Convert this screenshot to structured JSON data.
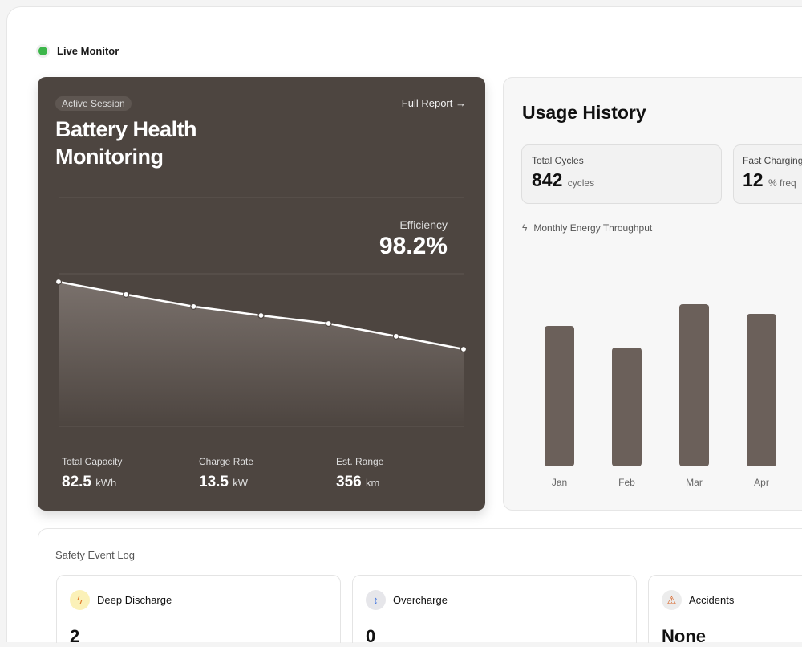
{
  "header": {
    "status": "Live Monitor",
    "status_color": "#3cb64a"
  },
  "battery": {
    "badge": "Active Session",
    "link": "Full Report →",
    "title_line1": "Battery Health",
    "title_line2": "Monitoring",
    "efficiency_label": "Efficiency",
    "efficiency_value": "98.2%",
    "stats": [
      {
        "label": "Total Capacity",
        "value": "82.5",
        "unit": "kWh"
      },
      {
        "label": "Charge Rate",
        "value": "13.5",
        "unit": "kW"
      },
      {
        "label": "Est. Range",
        "value": "356",
        "unit": "km"
      }
    ]
  },
  "usage": {
    "title": "Usage History",
    "cards": [
      {
        "label": "Total Cycles",
        "value": "842",
        "unit": "cycles"
      },
      {
        "label": "Fast Charging",
        "value": "12",
        "unit": "% freq"
      }
    ],
    "chart_label": "Monthly Energy Throughput"
  },
  "chart_data": [
    {
      "type": "line",
      "values": [
        100,
        94.6,
        89.5,
        85.7,
        82.3,
        76.9,
        71.4
      ],
      "color": "#ffffff",
      "grid": true
    },
    {
      "type": "bar",
      "categories": [
        "Jan",
        "Feb",
        "Mar",
        "Apr"
      ],
      "values": [
        175,
        148,
        202,
        190
      ],
      "color": "#6b605a"
    }
  ],
  "safety": {
    "title": "Safety Event Log",
    "events": [
      {
        "label": "Deep Discharge",
        "value": "2",
        "icon": "lightning-icon",
        "color": "#e07a2e",
        "bg": "#fbf1b8"
      },
      {
        "label": "Overcharge",
        "value": "0",
        "icon": "arrows-vertical-icon",
        "color": "#4a7be0",
        "bg": "#e6e6ea"
      },
      {
        "label": "Accidents",
        "value": "None",
        "icon": "warning-icon",
        "color": "#d9692e",
        "bg": "#ececec"
      }
    ]
  }
}
